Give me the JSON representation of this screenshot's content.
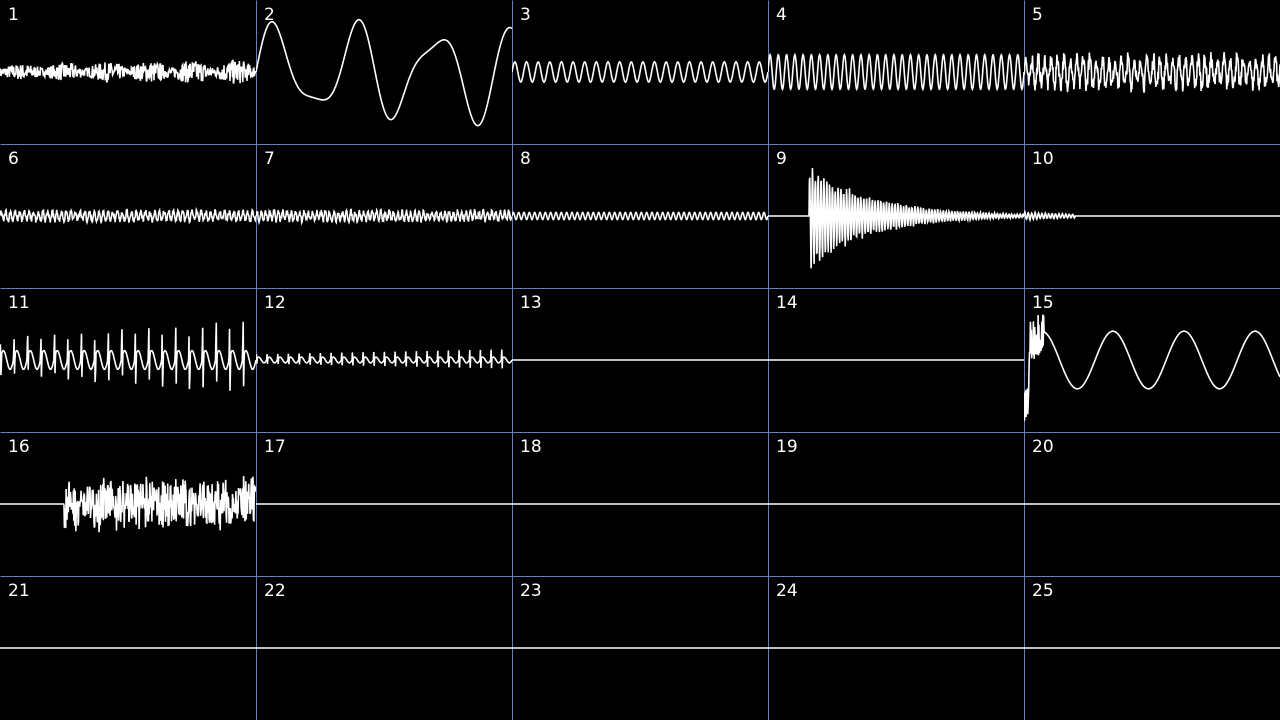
{
  "colors": {
    "background": "#000000",
    "grid": "#6b7fb0",
    "trace": "#ffffff",
    "label": "#ffffff"
  },
  "grid": {
    "columns": 5,
    "rows": 5
  },
  "channels": [
    {
      "label": "1",
      "wave": {
        "kind": "burst-noise",
        "amp": 0.09,
        "freq": 90,
        "grow": true
      }
    },
    {
      "label": "2",
      "wave": {
        "kind": "sine",
        "amp": 0.28,
        "cycles": 3.2,
        "harm": 0.35
      }
    },
    {
      "label": "3",
      "wave": {
        "kind": "sine",
        "amp": 0.07,
        "cycles": 22
      }
    },
    {
      "label": "4",
      "wave": {
        "kind": "sine",
        "amp": 0.12,
        "cycles": 31
      }
    },
    {
      "label": "5",
      "wave": {
        "kind": "noisy-sine",
        "amp": 0.09,
        "cycles": 40
      }
    },
    {
      "label": "6",
      "wave": {
        "kind": "noisy-sine",
        "amp": 0.03,
        "cycles": 55
      }
    },
    {
      "label": "7",
      "wave": {
        "kind": "noisy-sine",
        "amp": 0.03,
        "cycles": 60
      }
    },
    {
      "label": "8",
      "wave": {
        "kind": "sine",
        "amp": 0.025,
        "cycles": 48
      }
    },
    {
      "label": "9",
      "wave": {
        "kind": "decay",
        "amp": 0.38,
        "cycles": 30,
        "start": 0.16
      }
    },
    {
      "label": "10",
      "wave": {
        "kind": "decay",
        "amp": 0.03,
        "cycles": 25,
        "start": 0.0,
        "tail": 0.2
      }
    },
    {
      "label": "11",
      "wave": {
        "kind": "spikes",
        "amp": 0.26,
        "cycles": 19
      }
    },
    {
      "label": "12",
      "wave": {
        "kind": "spikes",
        "amp": 0.08,
        "cycles": 24
      }
    },
    {
      "label": "13",
      "wave": {
        "kind": "flat"
      }
    },
    {
      "label": "14",
      "wave": {
        "kind": "flat"
      }
    },
    {
      "label": "15",
      "wave": {
        "kind": "sine",
        "amp": 0.2,
        "cycles": 3.6,
        "spike": true
      }
    },
    {
      "label": "16",
      "wave": {
        "kind": "noise",
        "amp": 0.2,
        "start": 0.25
      }
    },
    {
      "label": "17",
      "wave": {
        "kind": "flat"
      }
    },
    {
      "label": "18",
      "wave": {
        "kind": "flat"
      }
    },
    {
      "label": "19",
      "wave": {
        "kind": "flat"
      }
    },
    {
      "label": "20",
      "wave": {
        "kind": "flat"
      }
    },
    {
      "label": "21",
      "wave": {
        "kind": "flat"
      }
    },
    {
      "label": "22",
      "wave": {
        "kind": "flat"
      }
    },
    {
      "label": "23",
      "wave": {
        "kind": "flat"
      }
    },
    {
      "label": "24",
      "wave": {
        "kind": "flat"
      }
    },
    {
      "label": "25",
      "wave": {
        "kind": "flat"
      }
    }
  ]
}
